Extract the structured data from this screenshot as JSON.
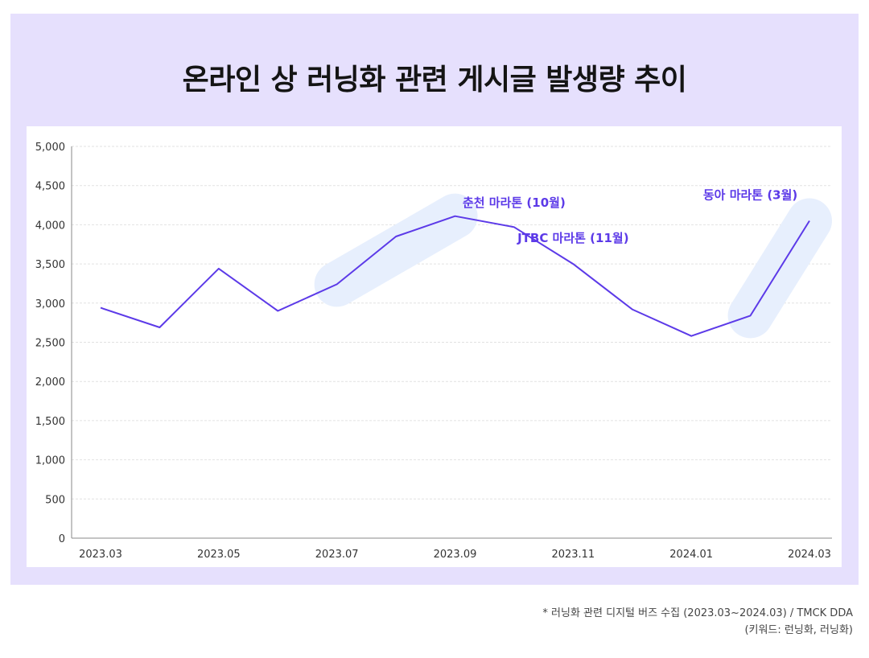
{
  "page": {
    "title": "온라인 상 러닝화 관련 게시글 발생량 추이",
    "footnote_line1": "* 러닝화 관련 디지털 버즈 수집 (2023.03~2024.03) / TMCK DDA",
    "footnote_line2": "(키워드: 런닝화, 러닝화)"
  },
  "colors": {
    "panel_bg": "#e6e0fd",
    "line": "#5c3ae8",
    "annotation_text": "#5c3ae8",
    "highlight": "#e7effd"
  },
  "chart_data": {
    "type": "line",
    "title": "온라인 상 러닝화 관련 게시글 발생량 추이",
    "xlabel": "",
    "ylabel": "",
    "x": [
      "2023.03",
      "2023.04",
      "2023.05",
      "2023.06",
      "2023.07",
      "2023.08",
      "2023.09",
      "2023.10",
      "2023.11",
      "2023.12",
      "2024.01",
      "2024.02",
      "2024.03"
    ],
    "x_tick_labels": [
      "2023.03",
      "2023.05",
      "2023.07",
      "2023.09",
      "2023.11",
      "2024.01",
      "2024.03"
    ],
    "values": [
      2940,
      2690,
      3440,
      2900,
      3240,
      3850,
      4110,
      3970,
      3500,
      2920,
      2580,
      2840,
      4050
    ],
    "ylim": [
      0,
      5000
    ],
    "y_ticks": [
      0,
      500,
      1000,
      1500,
      2000,
      2500,
      3000,
      3500,
      4000,
      4500,
      5000
    ],
    "y_tick_labels": [
      "0",
      "500",
      "1,000",
      "1,500",
      "2,000",
      "2,500",
      "3,000",
      "3,500",
      "4,000",
      "4,500",
      "5,000"
    ],
    "grid": true,
    "highlights": [
      {
        "from": "2023.07",
        "to": "2023.09"
      },
      {
        "from": "2024.02",
        "to": "2024.03"
      }
    ],
    "annotations": [
      {
        "text": "춘천 마라톤 (10월)",
        "x": "2023.10",
        "y": 4230
      },
      {
        "text": "JTBC 마라톤 (11월)",
        "x": "2023.11",
        "y": 3780
      },
      {
        "text": "동아 마라톤 (3월)",
        "x": "2024.02",
        "y": 4330
      }
    ]
  }
}
